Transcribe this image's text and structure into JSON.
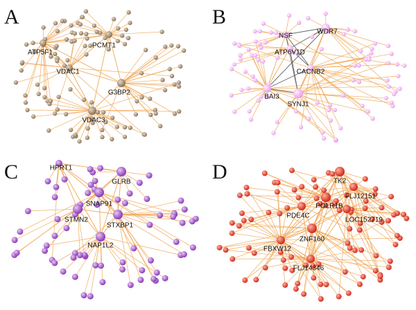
{
  "panels": [
    {
      "letter": "A",
      "hubs": [
        {
          "label": "ATP5F1"
        },
        {
          "label": "PCMT1"
        },
        {
          "label": "VDAC1"
        },
        {
          "label": "G3BP2"
        },
        {
          "label": "VDAC3"
        }
      ]
    },
    {
      "letter": "B",
      "hubs": [
        {
          "label": "NSF"
        },
        {
          "label": "WDR7"
        },
        {
          "label": "ATP6V1D"
        },
        {
          "label": "CACNB2"
        },
        {
          "label": "BAI3"
        },
        {
          "label": "SYNJ1"
        }
      ]
    },
    {
      "letter": "C",
      "hubs": [
        {
          "label": "HPRT1"
        },
        {
          "label": "GLRB"
        },
        {
          "label": "SNAP91"
        },
        {
          "label": "STMN2"
        },
        {
          "label": "STXBP1"
        },
        {
          "label": "NAP1L2"
        }
      ]
    },
    {
      "letter": "D",
      "hubs": [
        {
          "label": "TK2"
        },
        {
          "label": "FLJ12151"
        },
        {
          "label": "POLR1B"
        },
        {
          "label": "PDE4C"
        },
        {
          "label": "LOC152719"
        },
        {
          "label": "ZNF160"
        },
        {
          "label": "FBXW12"
        },
        {
          "label": "FLJ14346"
        }
      ]
    }
  ]
}
